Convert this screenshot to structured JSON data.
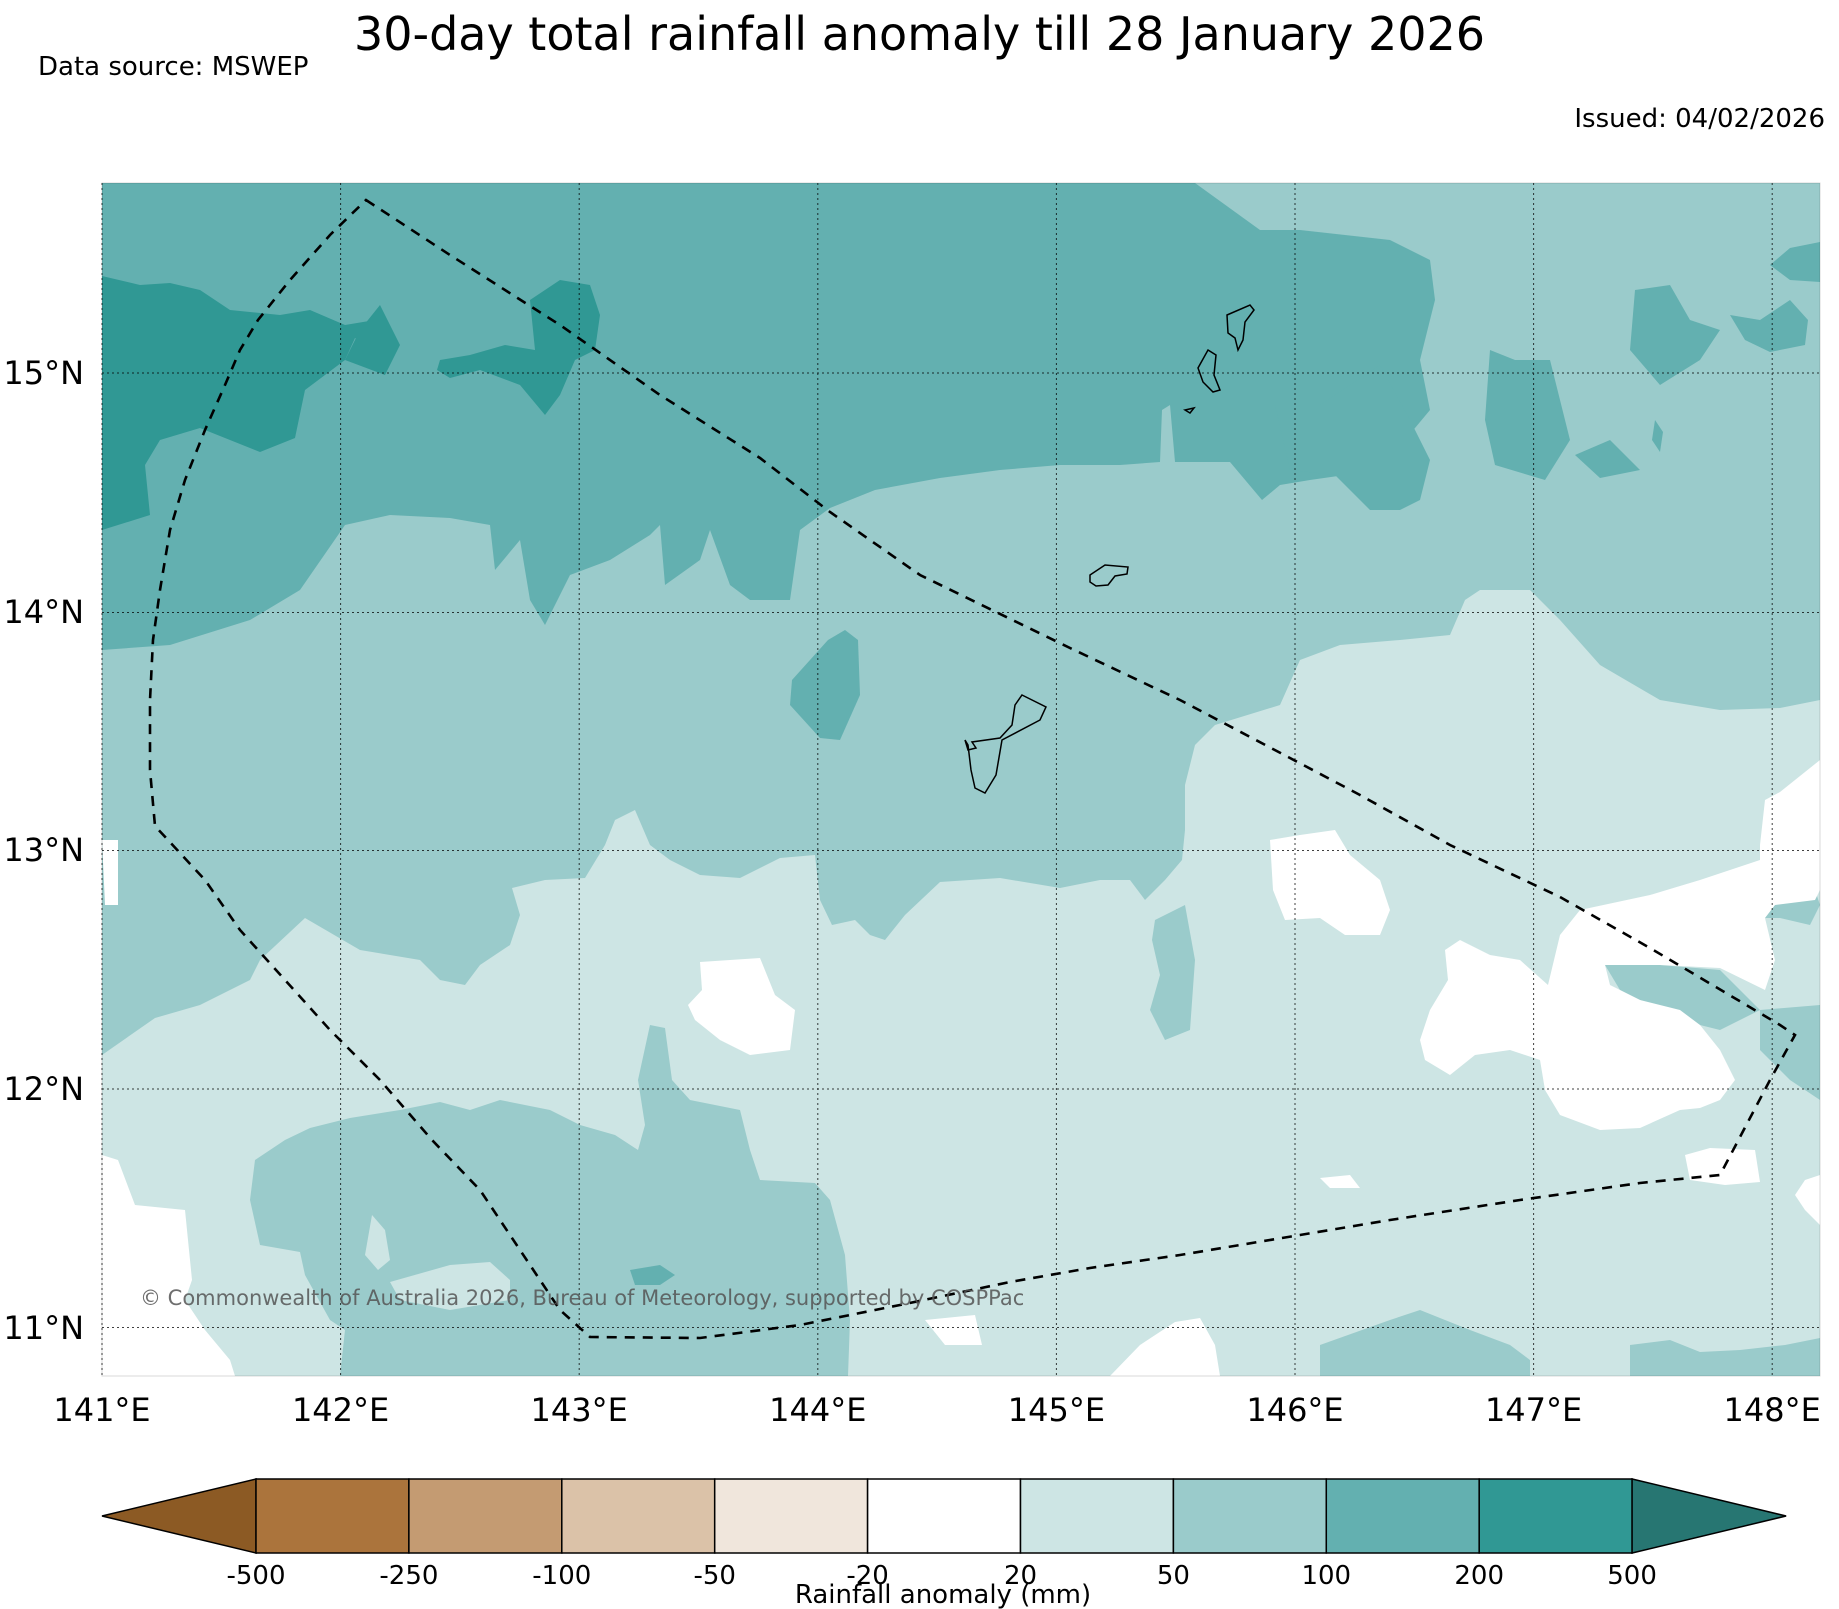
{
  "header": {
    "title": "30-day total rainfall anomaly till 28 January 2026",
    "source": "Data source: MSWEP",
    "issued": "Issued: 04/02/2026"
  },
  "map": {
    "region": "Guam and Northern Mariana Islands",
    "lon_labels": [
      "141°E",
      "142°E",
      "143°E",
      "144°E",
      "145°E",
      "146°E",
      "147°E",
      "148°E"
    ],
    "lat_labels": [
      "15°N",
      "14°N",
      "13°N",
      "12°N",
      "11°N"
    ],
    "credit": "© Commonwealth of Australia 2026, Bureau of Meteorology, supported by COSPPac"
  },
  "colorbar": {
    "label": "Rainfall anomaly (mm)",
    "ticks": [
      "-500",
      "-250",
      "-100",
      "-50",
      "-20",
      "20",
      "50",
      "100",
      "200",
      "500"
    ],
    "colors": {
      "lt_-500": "#8c5a24",
      "-500_-250": "#ab743c",
      "-250_-100": "#c49b72",
      "-100_-50": "#dbc2a8",
      "-50_-20": "#f0e6dc",
      "-20_20": "#ffffff",
      "20_50": "#cde5e4",
      "50_100": "#9acbcb",
      "100_200": "#63b0b0",
      "200_500": "#309894",
      "gt_500": "#277672"
    }
  }
}
